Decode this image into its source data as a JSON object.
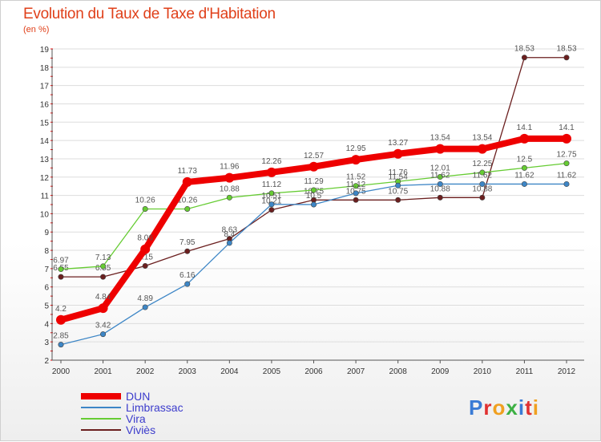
{
  "title": "Evolution du Taux de Taxe d'Habitation",
  "subtitle": "(en %)",
  "logo": {
    "parts": [
      {
        "t": "P",
        "c": "#3a7bd5"
      },
      {
        "t": "r",
        "c": "#e03030"
      },
      {
        "t": "o",
        "c": "#f0a020"
      },
      {
        "t": "x",
        "c": "#3cb043"
      },
      {
        "t": "i",
        "c": "#3a7bd5"
      },
      {
        "t": "t",
        "c": "#e03030"
      },
      {
        "t": "i",
        "c": "#f0a020"
      }
    ]
  },
  "chart_data": {
    "type": "line",
    "title": "Evolution du Taux de Taxe d'Habitation",
    "subtitle": "(en %)",
    "xlabel": "",
    "ylabel": "",
    "x": [
      2000,
      2001,
      2002,
      2003,
      2004,
      2005,
      2006,
      2007,
      2008,
      2009,
      2010,
      2011,
      2012
    ],
    "ylim": [
      2,
      19
    ],
    "yticks": [
      2,
      3,
      4,
      5,
      6,
      7,
      8,
      9,
      10,
      11,
      12,
      13,
      14,
      15,
      16,
      17,
      18,
      19
    ],
    "legend_position": "bottom-left",
    "series": [
      {
        "name": "DUN",
        "color": "#ee0000",
        "values": [
          4.2,
          4.84,
          8.06,
          11.73,
          11.96,
          12.26,
          12.57,
          12.95,
          13.27,
          13.54,
          13.54,
          14.1,
          14.1
        ]
      },
      {
        "name": "Limbrassac",
        "color": "#3d86c6",
        "values": [
          2.85,
          3.42,
          4.89,
          6.16,
          8.4,
          10.51,
          10.5,
          11.12,
          11.54,
          11.62,
          11.62,
          11.62,
          11.62
        ]
      },
      {
        "name": "Vira",
        "color": "#66cc33",
        "values": [
          6.97,
          7.13,
          10.26,
          10.26,
          10.88,
          11.12,
          11.29,
          11.52,
          11.76,
          12.01,
          12.25,
          12.5,
          12.75
        ]
      },
      {
        "name": "Viviès",
        "color": "#6b1f1f",
        "values": [
          6.55,
          6.55,
          7.15,
          7.95,
          8.63,
          10.21,
          10.75,
          10.75,
          10.75,
          10.88,
          10.88,
          18.53,
          18.53
        ]
      }
    ]
  }
}
